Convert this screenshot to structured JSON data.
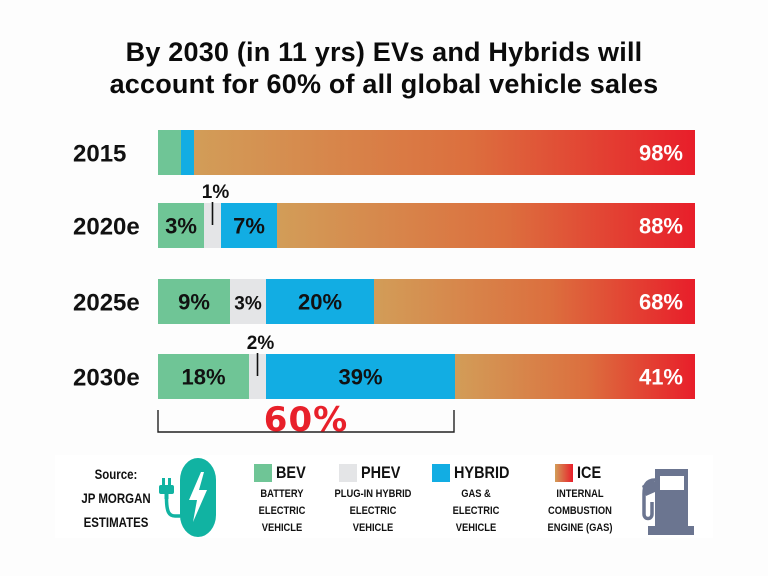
{
  "title": {
    "line1": "By 2030 (in 11 yrs) EVs and Hybrids will",
    "line2": "account for 60% of all global vehicle sales"
  },
  "colors": {
    "bev": "#6fc596",
    "phev": "#e4e5e7",
    "hybrid": "#12ade3",
    "ice_start": "#d29d58",
    "ice_mid": "#dc6f3e",
    "ice_end": "#e81e2a",
    "bracket_label": "#e8202a",
    "ev_icon": "#11b3a2",
    "pump_icon": "#6b7590"
  },
  "chart_data": {
    "type": "bar",
    "orientation": "horizontal",
    "stacked": true,
    "title": "By 2030 (in 11 yrs) EVs and Hybrids will account for 60% of all global vehicle sales",
    "xlabel": "",
    "ylabel": "",
    "xlim": [
      0,
      100
    ],
    "categories": [
      "2015",
      "2020e",
      "2025e",
      "2030e"
    ],
    "series": [
      {
        "name": "BEV",
        "values": [
          1,
          3,
          9,
          18
        ],
        "labels": [
          "",
          "3%",
          "9%",
          "18%"
        ]
      },
      {
        "name": "PHEV",
        "values": [
          0,
          1,
          3,
          2
        ],
        "labels": [
          "",
          "1%",
          "3%",
          "2%"
        ],
        "callout": [
          false,
          true,
          false,
          true
        ]
      },
      {
        "name": "HYBRID",
        "values": [
          1,
          7,
          20,
          39
        ],
        "labels": [
          "",
          "7%",
          "20%",
          "39%"
        ]
      },
      {
        "name": "ICE",
        "values": [
          98,
          88,
          68,
          41
        ],
        "labels": [
          "98%",
          "88%",
          "68%",
          "41%"
        ]
      }
    ],
    "annotation": {
      "text": "60%",
      "category": "2030e",
      "spans_series": [
        "BEV",
        "PHEV",
        "HYBRID"
      ]
    },
    "legend": {
      "position": "bottom",
      "entries": [
        {
          "name": "BEV",
          "desc": [
            "BATTERY",
            "ELECTRIC",
            "VEHICLE"
          ]
        },
        {
          "name": "PHEV",
          "desc": [
            "PLUG-IN HYBRID",
            "ELECTRIC",
            "VEHICLE"
          ]
        },
        {
          "name": "HYBRID",
          "desc": [
            "GAS &",
            "ELECTRIC",
            "VEHICLE"
          ]
        },
        {
          "name": "ICE",
          "desc": [
            "INTERNAL",
            "COMBUSTION",
            "ENGINE (GAS)"
          ]
        }
      ]
    },
    "grid": false
  },
  "source": {
    "line1": "Source:",
    "line2": "JP MORGAN",
    "line3": "ESTIMATES"
  },
  "icons": {
    "left": "ev-charging-plug-icon",
    "right": "gas-pump-icon"
  }
}
